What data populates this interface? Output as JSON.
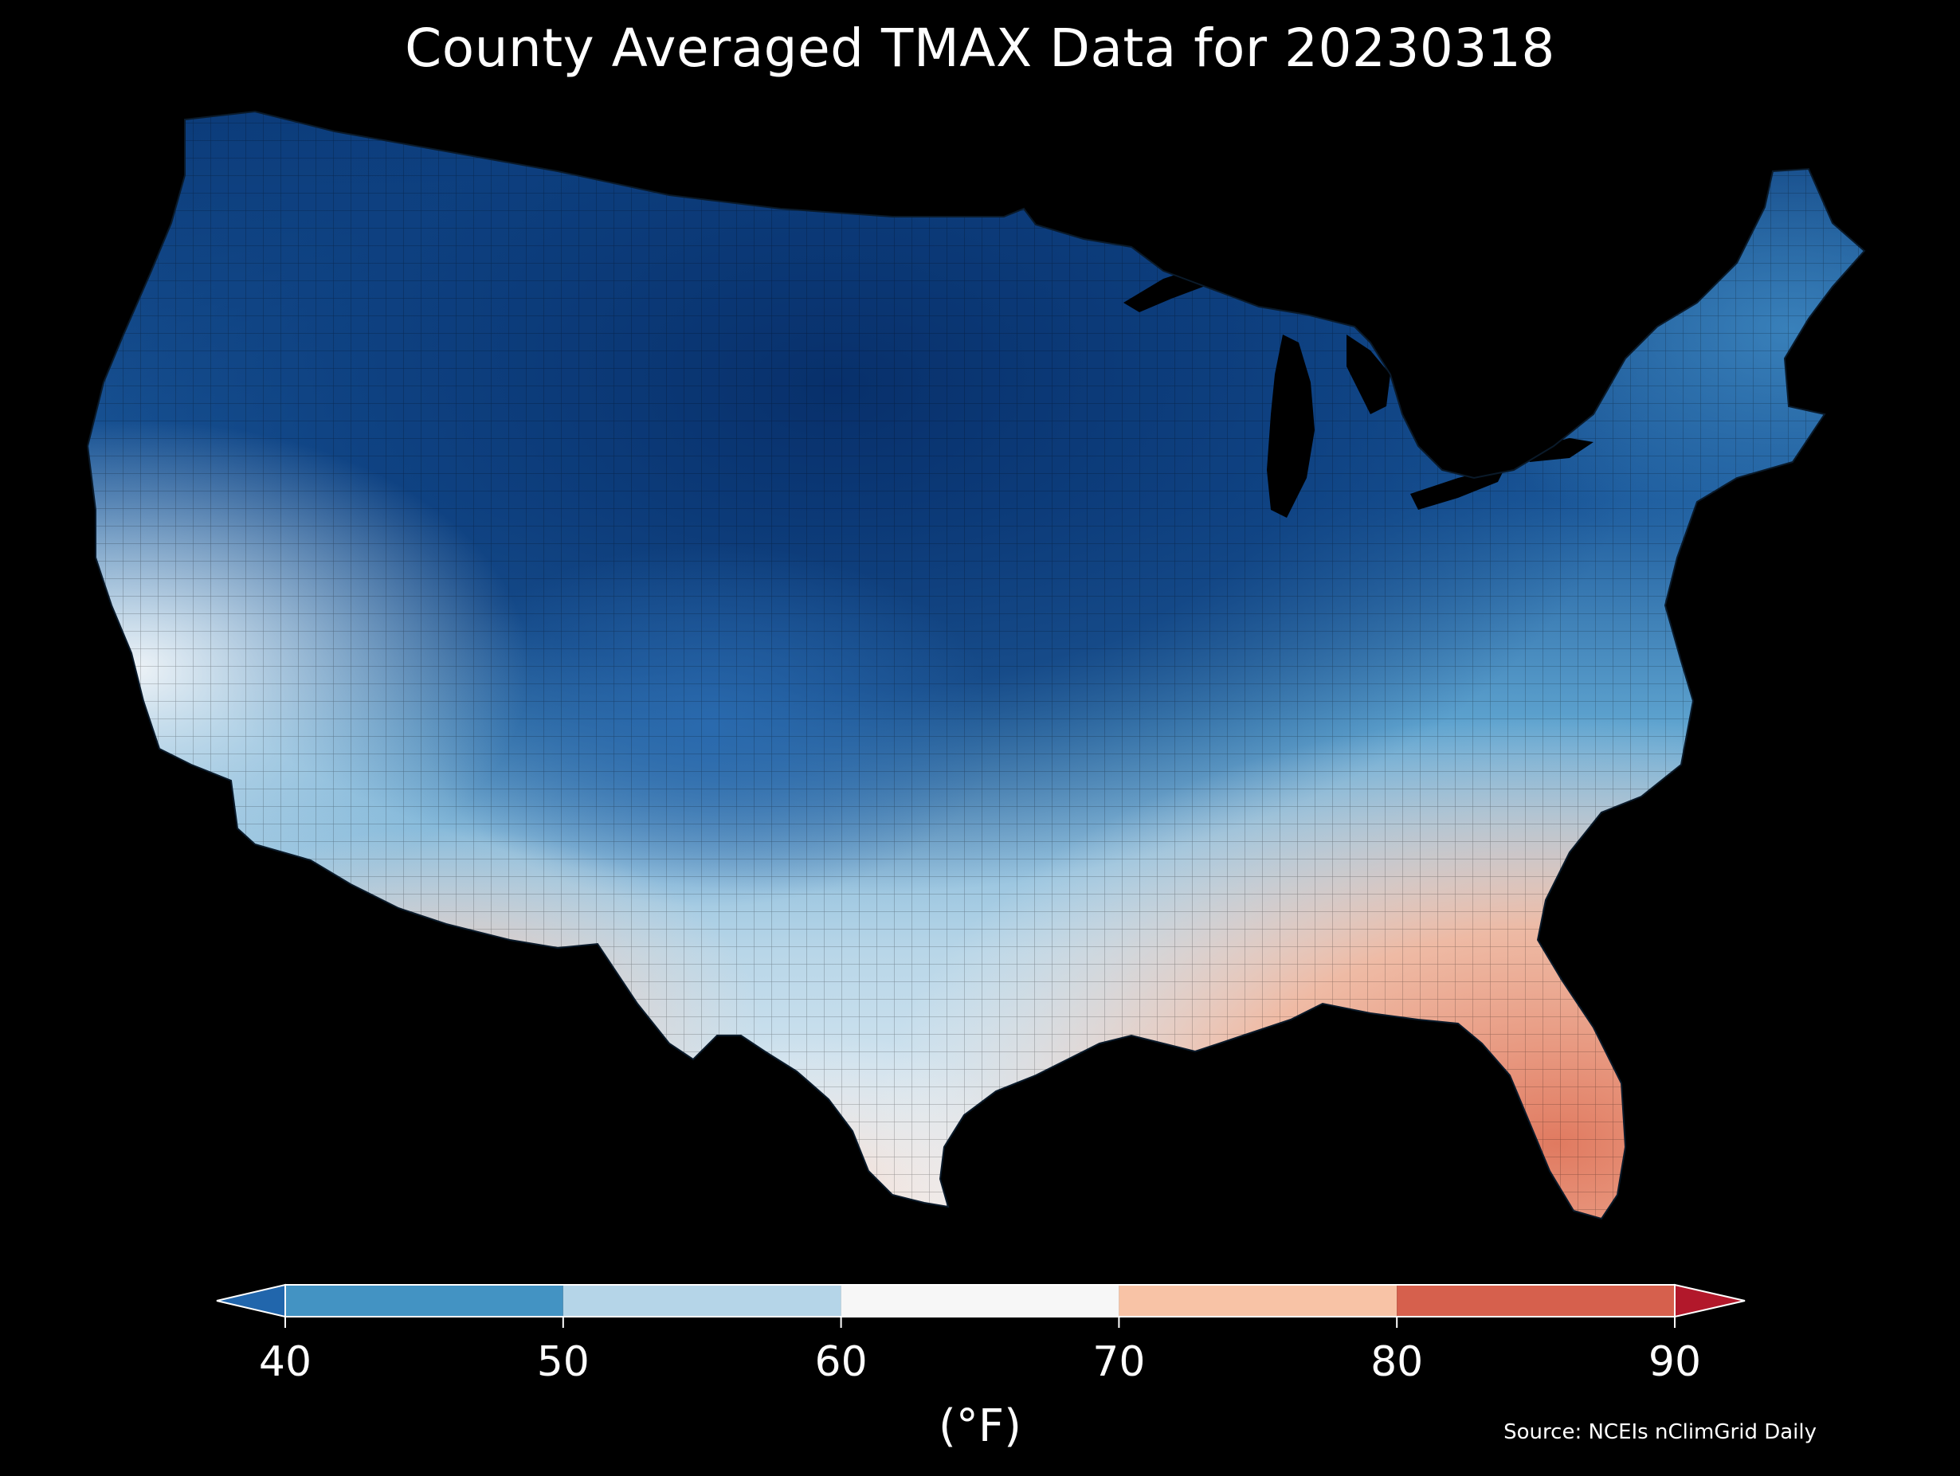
{
  "title": "County Averaged TMAX Data for 20230318",
  "colorbar": {
    "unit_label": "(°F)",
    "ticks": [
      "40",
      "50",
      "60",
      "70",
      "80",
      "90"
    ],
    "tick_values": [
      40,
      50,
      60,
      70,
      80,
      90
    ],
    "bins": [
      {
        "from": 40,
        "to": 50,
        "color": "#4393c3"
      },
      {
        "from": 50,
        "to": 60,
        "color": "#b5d5e8"
      },
      {
        "from": 60,
        "to": 70,
        "color": "#f7f7f7"
      },
      {
        "from": 70,
        "to": 80,
        "color": "#f8c3a6"
      },
      {
        "from": 80,
        "to": 90,
        "color": "#d6604d"
      }
    ],
    "extend_low_color": "#2166ac",
    "extend_high_color": "#b2182b"
  },
  "source": "Source: NCEIs nClimGrid Daily",
  "map": {
    "region": "Contiguous United States",
    "variable": "TMAX",
    "palette": {
      "very_cold": "#08306b",
      "cold": "#2166ac",
      "cool": "#4393c3",
      "mild": "#92c5de",
      "neutral": "#eef3f7",
      "warm": "#f7d0bc",
      "hot": "#e07a60"
    }
  }
}
